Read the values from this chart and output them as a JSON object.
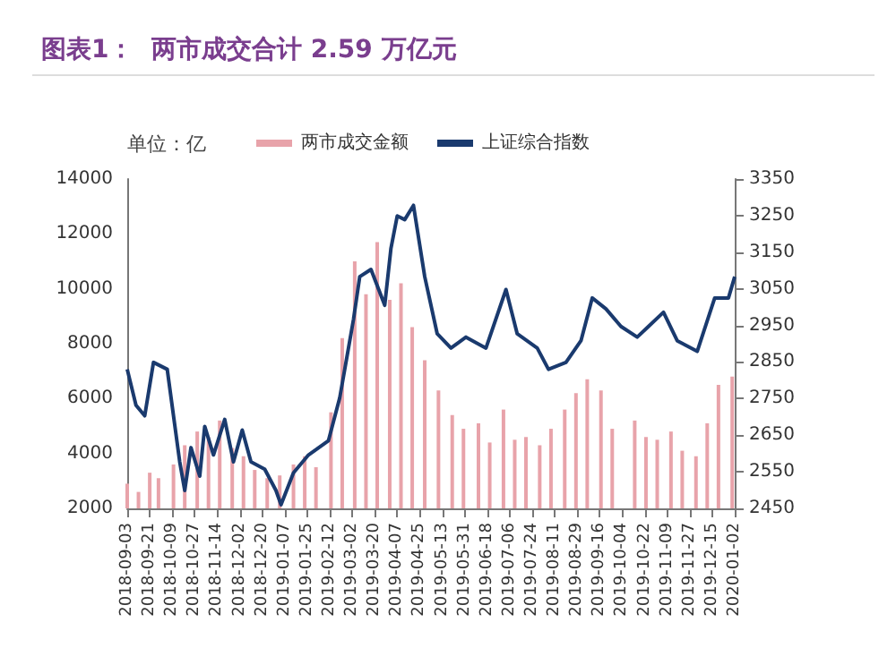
{
  "chart_data": {
    "type": "bar",
    "title": "图表1：  两市成交合计 2.59 万亿元",
    "ylabel": "单位：亿",
    "legend": "top",
    "grid": false,
    "x": [
      "2018-09-03",
      "2018-09-12",
      "2018-09-21",
      "2018-09-28",
      "2018-10-10",
      "2018-10-19",
      "2018-10-29",
      "2018-11-07",
      "2018-11-16",
      "2018-11-26",
      "2018-12-05",
      "2018-12-14",
      "2018-12-24",
      "2019-01-03",
      "2019-01-14",
      "2019-01-23",
      "2019-02-01",
      "2019-02-13",
      "2019-02-22",
      "2019-03-04",
      "2019-03-13",
      "2019-03-22",
      "2019-04-01",
      "2019-04-10",
      "2019-04-19",
      "2019-04-29",
      "2019-05-10",
      "2019-05-21",
      "2019-05-30",
      "2019-06-11",
      "2019-06-20",
      "2019-07-01",
      "2019-07-10",
      "2019-07-19",
      "2019-07-30",
      "2019-08-08",
      "2019-08-19",
      "2019-08-28",
      "2019-09-06",
      "2019-09-17",
      "2019-09-26",
      "2019-10-14",
      "2019-10-23",
      "2019-11-01",
      "2019-11-12",
      "2019-11-21",
      "2019-12-02",
      "2019-12-11",
      "2019-12-20",
      "2019-12-31"
    ],
    "series": [
      {
        "name": "两市成交金额",
        "color": "#e8a3aa",
        "values": [
          2900,
          2600,
          3300,
          3100,
          3600,
          4300,
          4800,
          4600,
          5200,
          4200,
          3900,
          3400,
          3100,
          3200,
          3600,
          3900,
          3500,
          5500,
          8200,
          11000,
          9800,
          11700,
          9600,
          10200,
          8600,
          7400,
          6300,
          5400,
          4900,
          5100,
          4400,
          5600,
          4500,
          4600,
          4300,
          4900,
          5600,
          6200,
          6700,
          6300,
          4900,
          5200,
          4600,
          4500,
          4800,
          4100,
          3900,
          5100,
          6500,
          6800
        ]
      },
      {
        "name": "上证综合指数",
        "type": "line",
        "axis": "y2",
        "color": "#1a3a6e",
        "x": [
          "2018-09-03",
          "2018-09-10",
          "2018-09-17",
          "2018-09-24",
          "2018-10-05",
          "2018-10-15",
          "2018-10-19",
          "2018-10-24",
          "2018-10-31",
          "2018-11-04",
          "2018-11-11",
          "2018-11-20",
          "2018-11-27",
          "2018-12-04",
          "2018-12-11",
          "2018-12-22",
          "2018-12-31",
          "2019-01-04",
          "2019-01-14",
          "2019-01-26",
          "2019-02-11",
          "2019-02-20",
          "2019-02-27",
          "2019-03-03",
          "2019-03-08",
          "2019-03-17",
          "2019-03-28",
          "2019-04-02",
          "2019-04-07",
          "2019-04-13",
          "2019-04-20",
          "2019-04-29",
          "2019-05-09",
          "2019-05-20",
          "2019-06-01",
          "2019-06-17",
          "2019-07-03",
          "2019-07-12",
          "2019-07-28",
          "2019-08-06",
          "2019-08-20",
          "2019-09-01",
          "2019-09-10",
          "2019-09-21",
          "2019-10-03",
          "2019-10-16",
          "2019-10-25",
          "2019-11-06",
          "2019-11-17",
          "2019-12-03",
          "2019-12-17",
          "2019-12-28",
          "2020-01-02"
        ],
        "values": [
          2830,
          2732,
          2703,
          2849,
          2830,
          2577,
          2499,
          2616,
          2538,
          2674,
          2596,
          2693,
          2577,
          2664,
          2577,
          2557,
          2499,
          2460,
          2547,
          2596,
          2635,
          2752,
          2888,
          2966,
          3083,
          3103,
          3005,
          3161,
          3249,
          3239,
          3278,
          3083,
          2927,
          2888,
          2918,
          2888,
          3048,
          2927,
          2888,
          2830,
          2849,
          2908,
          3025,
          2995,
          2947,
          2918,
          2947,
          2986,
          2908,
          2879,
          3025,
          3025,
          3083
        ]
      }
    ],
    "xlim": [
      "2018-09-03",
      "2020-01-02"
    ],
    "xticks": [
      "2018-09-03",
      "2018-09-21",
      "2018-10-09",
      "2018-10-27",
      "2018-11-14",
      "2018-12-02",
      "2018-12-20",
      "2019-01-07",
      "2019-01-25",
      "2019-02-12",
      "2019-03-02",
      "2019-03-20",
      "2019-04-07",
      "2019-04-25",
      "2019-05-13",
      "2019-05-31",
      "2019-06-18",
      "2019-07-06",
      "2019-07-24",
      "2019-08-11",
      "2019-08-29",
      "2019-09-16",
      "2019-10-04",
      "2019-10-22",
      "2019-11-09",
      "2019-11-27",
      "2019-12-15",
      "2020-01-02"
    ],
    "ylim": [
      2000,
      14000
    ],
    "yticks": [
      2000,
      4000,
      6000,
      8000,
      10000,
      12000,
      14000
    ],
    "y2lim": [
      2450,
      3350
    ],
    "y2ticks": [
      2450,
      2550,
      2650,
      2750,
      2850,
      2950,
      3050,
      3150,
      3250,
      3350
    ]
  }
}
